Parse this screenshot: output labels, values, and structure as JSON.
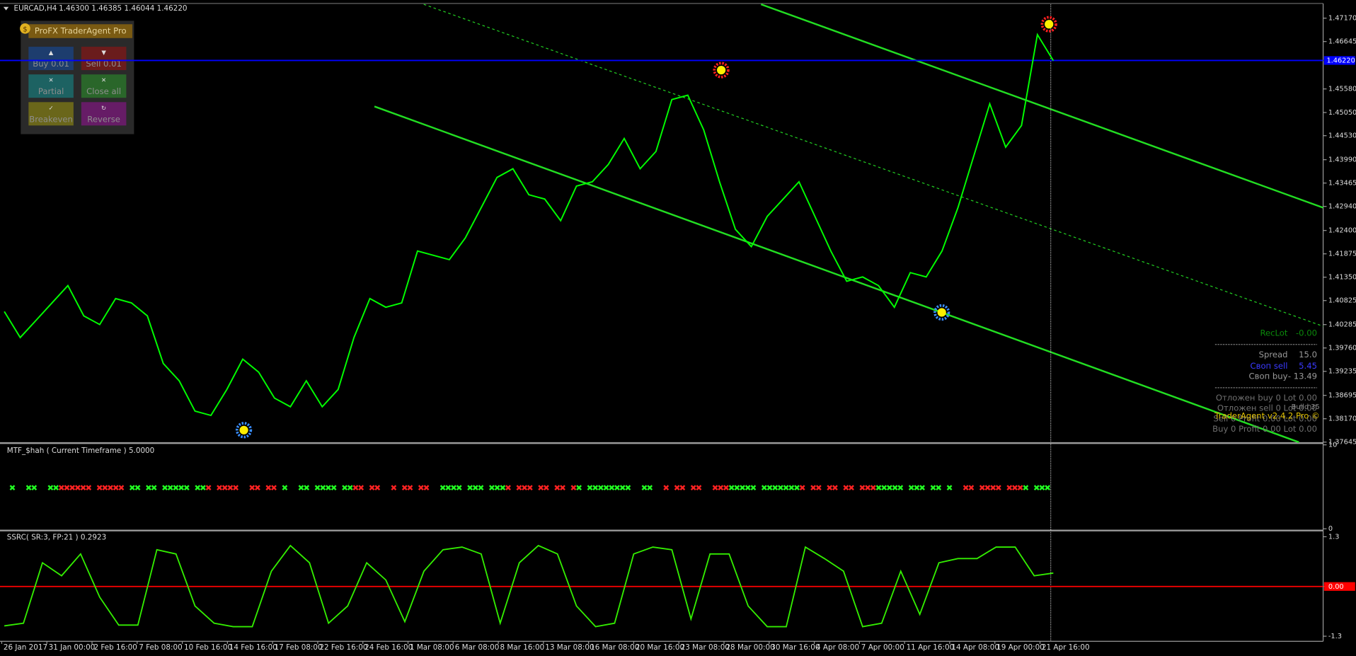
{
  "header": {
    "symbol": "EURCAD,H4",
    "quote": "1.46300 1.46385 1.46044 1.46220"
  },
  "panel": {
    "title": "ProFX TraderAgent Pro",
    "buttons": [
      {
        "label": "Buy 0.01",
        "color": "#1d3d6e"
      },
      {
        "label": "Sell 0.01",
        "color": "#6a1c1c"
      },
      {
        "label": "Partial",
        "color": "#1d6262"
      },
      {
        "label": "Close all",
        "color": "#2a662a"
      },
      {
        "label": "Breakeven",
        "color": "#6a661a"
      },
      {
        "label": "Reverse",
        "color": "#661c66"
      }
    ]
  },
  "info": {
    "rows": [
      [
        "RecLot",
        "-0.00"
      ],
      [
        "Spread",
        "15.0"
      ],
      [
        "Своп sell",
        "5.45"
      ],
      [
        "Своп buy",
        "- 13.49"
      ]
    ],
    "lines": [
      "Отложен buy 0  Lot 0.00",
      "Отложен sell 0  Lot 0.00",
      "Sell 0  Profit 0.00  Lot 0.00",
      "Buy 0  Profit 0.00  Lot 0.00"
    ],
    "build": "Build 35",
    "brand": "TraderAgent v2.4.2 Pro ©"
  },
  "x_labels": [
    "26 Jan 2017",
    "31 Jan 00:00",
    "2 Feb 16:00",
    "7 Feb 08:00",
    "10 Feb 16:00",
    "14 Feb 16:00",
    "17 Feb 08:00",
    "22 Feb 16:00",
    "24 Feb 16:00",
    "1 Mar 08:00",
    "6 Mar 08:00",
    "8 Mar 16:00",
    "13 Mar 08:00",
    "16 Mar 08:00",
    "20 Mar 16:00",
    "23 Mar 08:00",
    "28 Mar 00:00",
    "30 Mar 16:00",
    "4 Apr 08:00",
    "7 Apr 00:00",
    "11 Apr 16:00",
    "14 Apr 08:00",
    "19 Apr 00:00",
    "21 Apr 16:00"
  ],
  "chart_data": [
    {
      "type": "line",
      "color": "#00ff00",
      "ylim": [
        1.37642,
        1.47481
      ],
      "yticks": [
        {
          "value": 1.4717,
          "label": "1.47170"
        },
        {
          "value": 1.46645,
          "label": "1.46645"
        },
        {
          "value": 1.4558,
          "label": "1.45580"
        },
        {
          "value": 1.4505,
          "label": "1.45050"
        },
        {
          "value": 1.4453,
          "label": "1.44530"
        },
        {
          "value": 1.4399,
          "label": "1.43990"
        },
        {
          "value": 1.43465,
          "label": "1.43465"
        },
        {
          "value": 1.4294,
          "label": "1.42940"
        },
        {
          "value": 1.424,
          "label": "1.42400"
        },
        {
          "value": 1.41875,
          "label": "1.41875"
        },
        {
          "value": 1.4135,
          "label": "1.41350"
        },
        {
          "value": 1.40825,
          "label": "1.40825"
        },
        {
          "value": 1.40285,
          "label": "1.40285"
        },
        {
          "value": 1.3976,
          "label": "1.39760"
        },
        {
          "value": 1.39235,
          "label": "1.39235"
        },
        {
          "value": 1.38695,
          "label": "1.38695"
        },
        {
          "value": 1.3817,
          "label": "1.38170"
        },
        {
          "value": 1.37645,
          "label": "1.37645"
        }
      ],
      "bid": {
        "value": 1.4622,
        "label": "1.46220"
      },
      "bid_color": "#0000ff",
      "values": [
        1.40578,
        1.39995,
        1.40384,
        1.40773,
        1.41162,
        1.40481,
        1.40287,
        1.4087,
        1.40773,
        1.40481,
        1.39412,
        1.39023,
        1.38342,
        1.38245,
        1.38828,
        1.39509,
        1.39217,
        1.38634,
        1.3844,
        1.39023,
        1.3844,
        1.38828,
        1.39995,
        1.4087,
        1.40676,
        1.40773,
        1.41939,
        1.41842,
        1.41745,
        1.42231,
        1.42912,
        1.43592,
        1.43787,
        1.43203,
        1.43106,
        1.4262,
        1.43398,
        1.43495,
        1.43884,
        1.44467,
        1.43787,
        1.44176,
        1.45342,
        1.45439,
        1.44662,
        1.43495,
        1.42426,
        1.42037,
        1.42717,
        1.43106,
        1.43495,
        1.42717,
        1.41939,
        1.41259,
        1.41356,
        1.41162,
        1.40676,
        1.41453,
        1.41356,
        1.41939,
        1.42912,
        1.44078,
        1.45245,
        1.44273,
        1.44759,
        1.46801,
        1.46217
      ]
    },
    {
      "type": "signals",
      "title": "MTF_$hah ( Current Timeframe ) 5.0000",
      "ylim": [
        0,
        10
      ],
      "yticks": [
        10,
        0
      ]
    },
    {
      "type": "line",
      "title": "SSRC( SR:3, FP:21 ) 0.2923",
      "color": "#33ee00",
      "ylim": [
        -1.41,
        1.44
      ],
      "yticks": [
        1.3,
        {
          "value": 0,
          "label": "0.00"
        },
        -1.3
      ],
      "level_color": "#ff0000",
      "values": [
        -1.03,
        -0.96,
        0.62,
        0.28,
        0.85,
        -0.28,
        -1.01,
        -1.01,
        0.96,
        0.85,
        -0.51,
        -0.96,
        -1.05,
        -1.05,
        0.4,
        1.07,
        0.62,
        -0.96,
        -0.51,
        0.62,
        0.17,
        -0.92,
        0.4,
        0.96,
        1.03,
        0.85,
        -0.96,
        0.62,
        1.07,
        0.85,
        -0.51,
        -1.05,
        -0.96,
        0.85,
        1.03,
        0.96,
        -0.85,
        0.85,
        0.85,
        -0.51,
        -1.05,
        -1.05,
        1.03,
        0.73,
        0.4,
        -1.05,
        -0.96,
        0.4,
        -0.73,
        0.62,
        0.73,
        0.73,
        1.03,
        1.03,
        0.28,
        0.35
      ]
    }
  ]
}
